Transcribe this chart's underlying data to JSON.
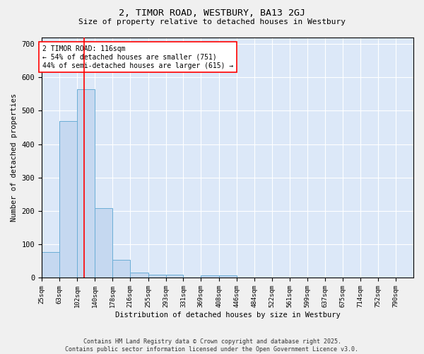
{
  "title1": "2, TIMOR ROAD, WESTBURY, BA13 2GJ",
  "title2": "Size of property relative to detached houses in Westbury",
  "xlabel": "Distribution of detached houses by size in Westbury",
  "ylabel": "Number of detached properties",
  "annotation_line1": "2 TIMOR ROAD: 116sqm",
  "annotation_line2": "← 54% of detached houses are smaller (751)",
  "annotation_line3": "44% of semi-detached houses are larger (615) →",
  "bar_color": "#c5d8f0",
  "bar_edge_color": "#6baed6",
  "red_line_x": 116,
  "categories": [
    "25sqm",
    "63sqm",
    "102sqm",
    "140sqm",
    "178sqm",
    "216sqm",
    "255sqm",
    "293sqm",
    "331sqm",
    "369sqm",
    "408sqm",
    "446sqm",
    "484sqm",
    "522sqm",
    "561sqm",
    "599sqm",
    "637sqm",
    "675sqm",
    "714sqm",
    "752sqm",
    "790sqm"
  ],
  "bin_edges": [
    25,
    63,
    102,
    140,
    178,
    216,
    255,
    293,
    331,
    369,
    408,
    446,
    484,
    522,
    561,
    599,
    637,
    675,
    714,
    752,
    790
  ],
  "bar_heights": [
    78,
    470,
    565,
    208,
    55,
    15,
    10,
    10,
    0,
    8,
    7,
    0,
    0,
    0,
    0,
    0,
    0,
    0,
    0,
    0
  ],
  "ylim": [
    0,
    720
  ],
  "yticks": [
    0,
    100,
    200,
    300,
    400,
    500,
    600,
    700
  ],
  "background_color": "#dce8f8",
  "grid_color": "#ffffff",
  "fig_background": "#f0f0f0",
  "footer1": "Contains HM Land Registry data © Crown copyright and database right 2025.",
  "footer2": "Contains public sector information licensed under the Open Government Licence v3.0."
}
